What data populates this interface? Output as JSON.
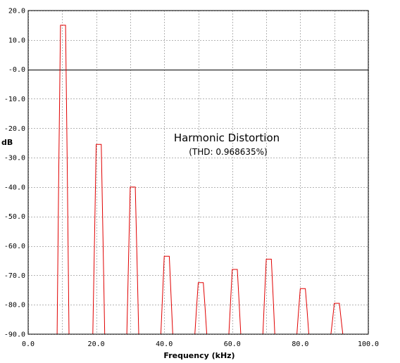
{
  "chart_data": {
    "type": "line",
    "title": "Harmonic Distortion",
    "subtitle": "(THD: 0.968635%)",
    "xlabel": "Frequency (kHz)",
    "ylabel": "dB",
    "xlim": [
      0,
      100
    ],
    "ylim": [
      -90,
      20
    ],
    "x_ticks": [
      0,
      10,
      20,
      30,
      40,
      50,
      60,
      70,
      80,
      90,
      100
    ],
    "x_tick_labels": [
      "0.0",
      "",
      "20.0",
      "",
      "40.0",
      "",
      "60.0",
      "",
      "80.0",
      "",
      "100.0"
    ],
    "y_ticks": [
      -90,
      -80,
      -70,
      -60,
      -50,
      -40,
      -30,
      -20,
      -10,
      0,
      10,
      20
    ],
    "y_tick_labels": [
      "-90.0",
      "-80.0",
      "-70.0",
      "-60.0",
      "-50.0",
      "-40.0",
      "-30.0",
      "-20.0",
      "-10.0",
      "-0.0",
      "10.0",
      "20.0"
    ],
    "grid": true,
    "reference_line_y": 0,
    "series": [
      {
        "color": "#e00000",
        "x": [
          0,
          8.5,
          9.0,
          9.5,
          11.0,
          11.5,
          12.0,
          19.0,
          19.5,
          20.0,
          21.5,
          22.0,
          22.5,
          29.0,
          29.5,
          30.0,
          31.5,
          32.0,
          32.5,
          39.0,
          39.5,
          40.0,
          41.5,
          42.0,
          42.5,
          49.0,
          49.5,
          50.0,
          51.5,
          52.0,
          52.5,
          59.0,
          59.5,
          60.0,
          61.5,
          62.0,
          62.5,
          69.0,
          69.5,
          70.0,
          71.5,
          72.0,
          72.5,
          79.0,
          79.5,
          80.0,
          81.5,
          82.0,
          82.5,
          89.0,
          89.5,
          90.0,
          91.5,
          92.0,
          92.5,
          100
        ],
        "y": [
          -90,
          -90,
          -33,
          15,
          15,
          -33,
          -90,
          -90,
          -58,
          -25.5,
          -25.5,
          -58,
          -90,
          -90,
          -65,
          -40,
          -40,
          -65,
          -90,
          -90,
          -77,
          -63.5,
          -63.5,
          -77,
          -90,
          -90,
          -81,
          -72.5,
          -72.5,
          -81,
          -90,
          -90,
          -79,
          -68,
          -68,
          -79,
          -90,
          -90,
          -77,
          -64.5,
          -64.5,
          -77,
          -90,
          -90,
          -82,
          -74.5,
          -74.5,
          -82,
          -90,
          -90,
          -85,
          -79.5,
          -79.5,
          -85,
          -90,
          -90
        ]
      }
    ]
  }
}
